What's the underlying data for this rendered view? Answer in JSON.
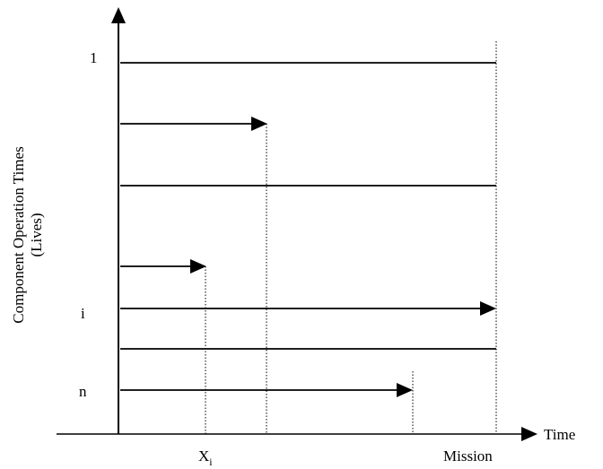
{
  "y_axis_label": {
    "line1": "Component Operation Times",
    "line2": "(Lives)"
  },
  "x_axis_label": "Time",
  "row_labels": {
    "first": "1",
    "i": "i",
    "n": "n"
  },
  "x_ticks": {
    "xi_base": "X",
    "xi_sub": "i",
    "mission": "Mission"
  },
  "lines": [
    {
      "row": "1",
      "type": "full"
    },
    {
      "row": "2",
      "type": "arrow",
      "ends_at": "between"
    },
    {
      "row": "3",
      "type": "full"
    },
    {
      "row": "4",
      "type": "arrow",
      "ends_at": "X_i"
    },
    {
      "row": "i",
      "type": "arrow",
      "ends_at": "Mission"
    },
    {
      "row": "6",
      "type": "full"
    },
    {
      "row": "n",
      "type": "arrow",
      "ends_at": "before Mission"
    }
  ],
  "colors": {
    "stroke": "#000000",
    "background": "#ffffff"
  }
}
